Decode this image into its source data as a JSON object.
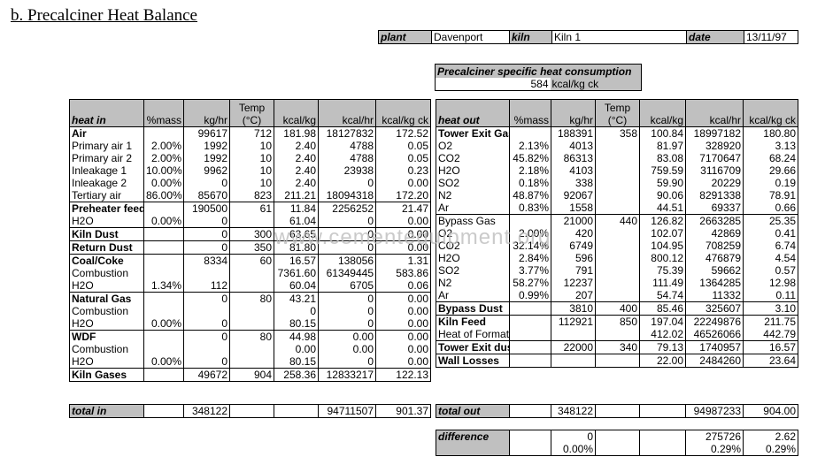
{
  "title": "b.    Precalciner Heat Balance",
  "info": {
    "plant_label": "plant",
    "plant_value": "Davenport",
    "kiln_label": "kiln",
    "kiln_value": "Kiln 1",
    "date_label": "date",
    "date_value": "13/11/97"
  },
  "specific": {
    "label": "Precalciner specific heat consumption",
    "value": "584",
    "unit": "kcal/kg ck"
  },
  "heat_in": {
    "headers": [
      "heat in",
      "%mass",
      "kg/hr",
      "Temp (°C)",
      "kcal/kg",
      "kcal/hr",
      "kcal/kg ck"
    ],
    "rows": [
      {
        "label": "Air",
        "bold": true,
        "sep": false,
        "cells": [
          "",
          "99617",
          "712",
          "181.98",
          "18127832",
          "172.52"
        ]
      },
      {
        "label": "Primary air 1",
        "bold": false,
        "sep": false,
        "cells": [
          "2.00%",
          "1992",
          "10",
          "2.40",
          "4788",
          "0.05"
        ]
      },
      {
        "label": "Primary air 2",
        "bold": false,
        "sep": false,
        "cells": [
          "2.00%",
          "1992",
          "10",
          "2.40",
          "4788",
          "0.05"
        ]
      },
      {
        "label": "Inleakage 1",
        "bold": false,
        "sep": false,
        "cells": [
          "10.00%",
          "9962",
          "10",
          "2.40",
          "23938",
          "0.23"
        ]
      },
      {
        "label": "Inleakage 2",
        "bold": false,
        "sep": false,
        "cells": [
          "0.00%",
          "0",
          "10",
          "2.40",
          "0",
          "0.00"
        ]
      },
      {
        "label": "Tertiary air",
        "bold": false,
        "sep": false,
        "cells": [
          "86.00%",
          "85670",
          "823",
          "211.21",
          "18094318",
          "172.20"
        ]
      },
      {
        "label": "Preheater feed",
        "bold": true,
        "sep": true,
        "cells": [
          "",
          "190500",
          "61",
          "11.84",
          "2256252",
          "21.47"
        ]
      },
      {
        "label": "H2O",
        "bold": false,
        "sep": false,
        "cells": [
          "0.00%",
          "0",
          "",
          "61.04",
          "0",
          "0.00"
        ]
      },
      {
        "label": "Kiln Dust",
        "bold": true,
        "sep": true,
        "cells": [
          "",
          "0",
          "300",
          "63.65",
          "0",
          "0.00"
        ]
      },
      {
        "label": "Return Dust",
        "bold": true,
        "sep": true,
        "cells": [
          "",
          "0",
          "350",
          "81.80",
          "0",
          "0.00"
        ]
      },
      {
        "label": "Coal/Coke",
        "bold": true,
        "sep": true,
        "cells": [
          "",
          "8334",
          "60",
          "16.57",
          "138056",
          "1.31"
        ]
      },
      {
        "label": "Combustion",
        "bold": false,
        "sep": false,
        "cells": [
          "",
          "",
          "",
          "7361.60",
          "61349445",
          "583.86"
        ]
      },
      {
        "label": "H2O",
        "bold": false,
        "sep": false,
        "cells": [
          "1.34%",
          "112",
          "",
          "60.04",
          "6705",
          "0.06"
        ]
      },
      {
        "label": "Natural Gas",
        "bold": true,
        "sep": true,
        "cells": [
          "",
          "0",
          "80",
          "43.21",
          "0",
          "0.00"
        ]
      },
      {
        "label": "Combustion",
        "bold": false,
        "sep": false,
        "cells": [
          "",
          "",
          "",
          "0",
          "0",
          "0.00"
        ]
      },
      {
        "label": "H2O",
        "bold": false,
        "sep": false,
        "cells": [
          "0.00%",
          "0",
          "",
          "80.15",
          "0",
          "0.00"
        ]
      },
      {
        "label": "WDF",
        "bold": true,
        "sep": true,
        "cells": [
          "",
          "0",
          "80",
          "44.98",
          "0.00",
          "0.00"
        ]
      },
      {
        "label": "Combustion",
        "bold": false,
        "sep": false,
        "cells": [
          "",
          "",
          "",
          "0.00",
          "0.00",
          "0.00"
        ]
      },
      {
        "label": "H2O",
        "bold": false,
        "sep": false,
        "cells": [
          "0.00%",
          "0",
          "",
          "80.15",
          "0",
          "0.00"
        ]
      },
      {
        "label": "Kiln Gases",
        "bold": true,
        "sep": true,
        "cells": [
          "",
          "49672",
          "904",
          "258.36",
          "12833217",
          "122.13"
        ]
      }
    ],
    "total": {
      "label": "total in",
      "cells": [
        "",
        "348122",
        "",
        "",
        "94711507",
        "901.37"
      ]
    }
  },
  "heat_out": {
    "headers": [
      "heat out",
      "%mass",
      "kg/hr",
      "Temp (°C)",
      "kcal/kg",
      "kcal/hr",
      "kcal/kg ck"
    ],
    "rows": [
      {
        "label": "Tower Exit Gas",
        "bold": true,
        "sep": false,
        "cells": [
          "",
          "188391",
          "358",
          "100.84",
          "18997182",
          "180.80"
        ]
      },
      {
        "label": "O2",
        "bold": false,
        "sep": false,
        "cells": [
          "2.13%",
          "4013",
          "",
          "81.97",
          "328920",
          "3.13"
        ]
      },
      {
        "label": "CO2",
        "bold": false,
        "sep": false,
        "cells": [
          "45.82%",
          "86313",
          "",
          "83.08",
          "7170647",
          "68.24"
        ]
      },
      {
        "label": "H2O",
        "bold": false,
        "sep": false,
        "cells": [
          "2.18%",
          "4103",
          "",
          "759.59",
          "3116709",
          "29.66"
        ]
      },
      {
        "label": "SO2",
        "bold": false,
        "sep": false,
        "cells": [
          "0.18%",
          "338",
          "",
          "59.90",
          "20229",
          "0.19"
        ]
      },
      {
        "label": "N2",
        "bold": false,
        "sep": false,
        "cells": [
          "48.87%",
          "92067",
          "",
          "90.06",
          "8291338",
          "78.91"
        ]
      },
      {
        "label": "Ar",
        "bold": false,
        "sep": false,
        "cells": [
          "0.83%",
          "1558",
          "",
          "44.51",
          "69337",
          "0.66"
        ]
      },
      {
        "label": "Bypass Gas",
        "bold": false,
        "sep": true,
        "cells": [
          "",
          "21000",
          "440",
          "126.82",
          "2663285",
          "25.35"
        ]
      },
      {
        "label": "O2",
        "bold": false,
        "sep": false,
        "cells": [
          "2.00%",
          "420",
          "",
          "102.07",
          "42869",
          "0.41"
        ]
      },
      {
        "label": "CO2",
        "bold": false,
        "sep": false,
        "cells": [
          "32.14%",
          "6749",
          "",
          "104.95",
          "708259",
          "6.74"
        ]
      },
      {
        "label": "H2O",
        "bold": false,
        "sep": false,
        "cells": [
          "2.84%",
          "596",
          "",
          "800.12",
          "476879",
          "4.54"
        ]
      },
      {
        "label": "SO2",
        "bold": false,
        "sep": false,
        "cells": [
          "3.77%",
          "791",
          "",
          "75.39",
          "59662",
          "0.57"
        ]
      },
      {
        "label": "N2",
        "bold": false,
        "sep": false,
        "cells": [
          "58.27%",
          "12237",
          "",
          "111.49",
          "1364285",
          "12.98"
        ]
      },
      {
        "label": "Ar",
        "bold": false,
        "sep": false,
        "cells": [
          "0.99%",
          "207",
          "",
          "54.74",
          "11332",
          "0.11"
        ]
      },
      {
        "label": "Bypass Dust",
        "bold": true,
        "sep": true,
        "cells": [
          "",
          "3810",
          "400",
          "85.46",
          "325607",
          "3.10"
        ]
      },
      {
        "label": "Kiln Feed",
        "bold": true,
        "sep": true,
        "cells": [
          "",
          "112921",
          "850",
          "197.04",
          "22249876",
          "211.75"
        ]
      },
      {
        "label": "Heat of Formation",
        "bold": false,
        "sep": false,
        "cells": [
          "",
          "",
          "",
          "412.02",
          "46526066",
          "442.79"
        ]
      },
      {
        "label": "Tower Exit dust",
        "bold": true,
        "sep": true,
        "cells": [
          "",
          "22000",
          "340",
          "79.13",
          "1740957",
          "16.57"
        ]
      },
      {
        "label": "Wall Losses",
        "bold": true,
        "sep": true,
        "cells": [
          "",
          "",
          "",
          "22.00",
          "2484260",
          "23.64"
        ]
      }
    ],
    "total": {
      "label": "total out",
      "cells": [
        "",
        "348122",
        "",
        "",
        "94987233",
        "904.00"
      ]
    },
    "difference": {
      "label": "difference",
      "row1": [
        "",
        "0",
        "",
        "",
        "275726",
        "2.62"
      ],
      "row2": [
        "",
        "0.00%",
        "",
        "",
        "0.29%",
        "0.29%"
      ]
    }
  },
  "watermark": "www.cementequipment.org"
}
